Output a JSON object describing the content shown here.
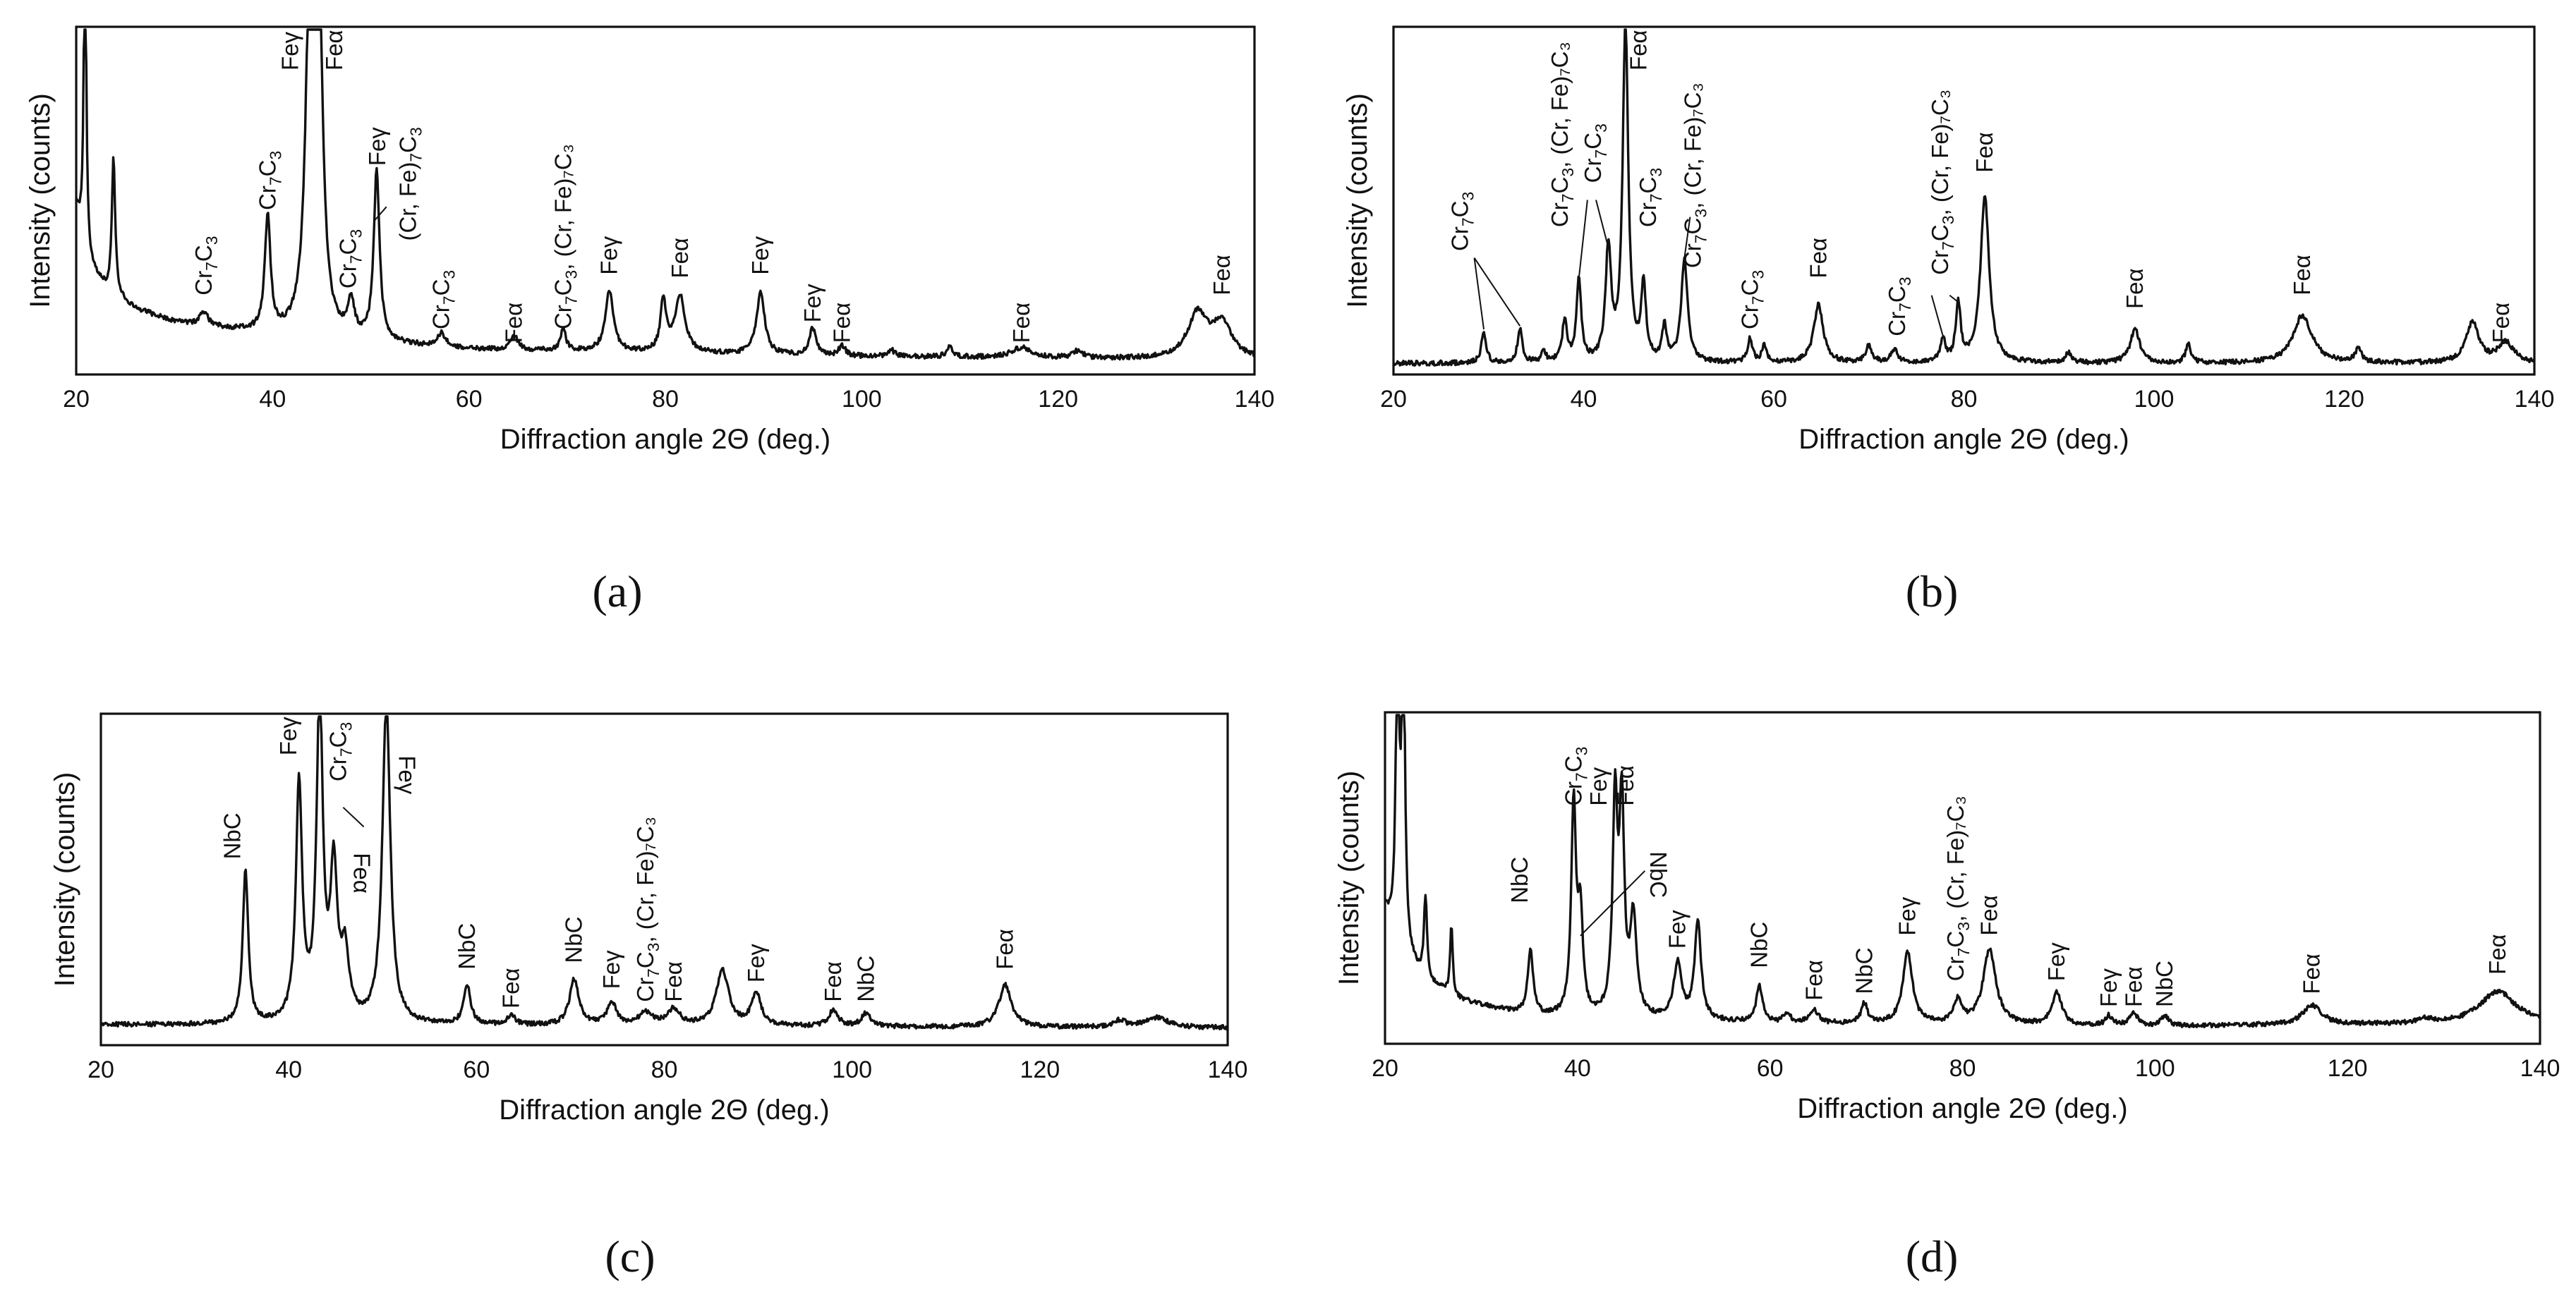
{
  "figure": {
    "panels": [
      {
        "id": "a",
        "caption": "(a)"
      },
      {
        "id": "b",
        "caption": "(b)"
      },
      {
        "id": "c",
        "caption": "(c)"
      },
      {
        "id": "d",
        "caption": "(d)"
      }
    ]
  },
  "chart_data": [
    {
      "type": "line",
      "panel": "a",
      "xlabel": "Diffraction angle 2Θ (deg.)",
      "ylabel": "Intensity (counts)",
      "xlim": [
        20,
        140
      ],
      "ylim": [
        0,
        100
      ],
      "xticks": [
        20,
        40,
        60,
        80,
        100,
        120,
        140
      ],
      "baseline": [
        [
          20,
          48
        ],
        [
          21,
          32
        ],
        [
          23,
          24
        ],
        [
          26,
          18
        ],
        [
          30,
          14
        ],
        [
          40,
          10
        ],
        [
          60,
          6
        ],
        [
          100,
          4
        ],
        [
          140,
          3
        ]
      ],
      "peaks": [
        [
          20.9,
          100,
          0.15
        ],
        [
          23.8,
          40,
          0.2
        ],
        [
          33,
          4,
          0.5
        ],
        [
          39.5,
          34,
          0.35
        ],
        [
          43.8,
          100,
          0.5
        ],
        [
          44.7,
          100,
          0.45
        ],
        [
          48,
          10,
          0.4
        ],
        [
          50.6,
          50,
          0.35
        ],
        [
          57.2,
          4,
          0.5
        ],
        [
          64.6,
          4,
          0.5
        ],
        [
          69.6,
          7,
          0.3
        ],
        [
          74.3,
          18,
          0.5
        ],
        [
          79.8,
          15,
          0.35
        ],
        [
          81.5,
          17,
          0.6
        ],
        [
          89.7,
          18,
          0.5
        ],
        [
          95,
          8,
          0.4
        ],
        [
          98,
          3,
          0.4
        ],
        [
          103,
          2,
          0.4
        ],
        [
          109,
          3,
          0.4
        ],
        [
          116.3,
          3,
          1.2
        ],
        [
          122,
          2,
          0.6
        ],
        [
          134.2,
          13,
          1.2
        ],
        [
          136.7,
          10,
          1.2
        ]
      ],
      "labels": [
        {
          "base": "Cr",
          "sub1": "7",
          "mid": "C",
          "sub2": "3",
          "tail": "",
          "x": 33,
          "y": 22,
          "rot": -90
        },
        {
          "base": "Cr",
          "sub1": "7",
          "mid": "C",
          "sub2": "3",
          "tail": "",
          "x": 39.5,
          "y": 47,
          "rot": -90
        },
        {
          "base": "Feγ",
          "x": 41.8,
          "y": 88,
          "rot": -90
        },
        {
          "base": "Feα",
          "x": 46.3,
          "y": 88,
          "rot": -90
        },
        {
          "base": "Cr",
          "sub1": "7",
          "mid": "C",
          "sub2": "3",
          "tail": "",
          "x": 47.7,
          "y": 24,
          "rot": -90
        },
        {
          "base": "Feγ",
          "x": 50.7,
          "y": 60,
          "rot": -90
        },
        {
          "base": "(Cr, Fe)",
          "sub1": "7",
          "mid": "C",
          "sub2": "3",
          "tail": "",
          "x": 53.8,
          "y": 38,
          "rot": -90
        },
        {
          "base": "Cr",
          "sub1": "7",
          "mid": "C",
          "sub2": "3",
          "tail": "",
          "x": 57.2,
          "y": 12,
          "rot": -90
        },
        {
          "base": "Feα",
          "x": 64.6,
          "y": 8,
          "rot": -90
        },
        {
          "base": "Cr",
          "sub1": "7",
          "mid": "C",
          "sub2": "3",
          "tail": ", (Cr, Fe)₇C₃",
          "x": 69.6,
          "y": 12,
          "rot": -90
        },
        {
          "base": "Feγ",
          "x": 74.3,
          "y": 28,
          "rot": -90
        },
        {
          "base": "Feα",
          "x": 81.5,
          "y": 27,
          "rot": -90
        },
        {
          "base": "Feγ",
          "x": 89.7,
          "y": 28,
          "rot": -90
        },
        {
          "base": "Feγ",
          "x": 95,
          "y": 14,
          "rot": -90
        },
        {
          "base": "Feα",
          "x": 98,
          "y": 8,
          "rot": -90
        },
        {
          "base": "Feα",
          "x": 116.3,
          "y": 8,
          "rot": -90
        },
        {
          "base": "Feα",
          "x": 136.7,
          "y": 22,
          "rot": -90
        }
      ],
      "leaders": [
        [
          [
            51.6,
            48
          ],
          [
            50.4,
            44
          ]
        ]
      ]
    },
    {
      "type": "line",
      "panel": "b",
      "xlabel": "Diffraction angle 2Θ (deg.)",
      "ylabel": "Intensity (counts)",
      "xlim": [
        20,
        140
      ],
      "ylim": [
        0,
        100
      ],
      "xticks": [
        20,
        40,
        60,
        80,
        100,
        120,
        140
      ],
      "baseline": [
        [
          20,
          2
        ],
        [
          140,
          2
        ]
      ],
      "peaks": [
        [
          29.5,
          9,
          0.3
        ],
        [
          33.3,
          10,
          0.3
        ],
        [
          35.8,
          3,
          0.3
        ],
        [
          38,
          12,
          0.3
        ],
        [
          39.5,
          24,
          0.3
        ],
        [
          42.6,
          33,
          0.35
        ],
        [
          44.4,
          100,
          0.35
        ],
        [
          46.3,
          22,
          0.3
        ],
        [
          48.5,
          10,
          0.3
        ],
        [
          50.6,
          30,
          0.4
        ],
        [
          57.5,
          7,
          0.3
        ],
        [
          59,
          5,
          0.3
        ],
        [
          64.7,
          17,
          0.6
        ],
        [
          70,
          5,
          0.4
        ],
        [
          72.7,
          4,
          0.4
        ],
        [
          77.8,
          7,
          0.3
        ],
        [
          79.4,
          17,
          0.3
        ],
        [
          82.2,
          49,
          0.55
        ],
        [
          91,
          3,
          0.4
        ],
        [
          98,
          10,
          0.6
        ],
        [
          103.6,
          6,
          0.3
        ],
        [
          115.6,
          14,
          1.2
        ],
        [
          121.5,
          4,
          0.4
        ],
        [
          133.5,
          12,
          0.8
        ],
        [
          137,
          6,
          1.0
        ]
      ],
      "labels": [
        {
          "base": "Cr",
          "sub1": "7",
          "mid": "C",
          "sub2": "3",
          "tail": "",
          "x": 27,
          "y": 35,
          "rot": -90
        },
        {
          "base": "Cr",
          "sub1": "7",
          "mid": "C",
          "sub2": "3",
          "tail": ", (Cr, Fe)₇C₃",
          "x": 37.5,
          "y": 42,
          "rot": -90
        },
        {
          "base": "Cr",
          "sub1": "7",
          "mid": "C",
          "sub2": "3",
          "tail": "",
          "x": 41,
          "y": 55,
          "rot": -90
        },
        {
          "base": "Feα",
          "x": 45.8,
          "y": 88,
          "rot": -90
        },
        {
          "base": "Cr",
          "sub1": "7",
          "mid": "C",
          "sub2": "3",
          "tail": "",
          "x": 46.8,
          "y": 42,
          "rot": -90
        },
        {
          "base": "Cr",
          "sub1": "7",
          "mid": "C",
          "sub2": "3",
          "tail": ", (Cr, Fe)₇C₃",
          "x": 51.5,
          "y": 30,
          "rot": -90
        },
        {
          "base": "Cr",
          "sub1": "7",
          "mid": "C",
          "sub2": "3",
          "tail": "",
          "x": 57.5,
          "y": 12,
          "rot": -90
        },
        {
          "base": "Feα",
          "x": 64.7,
          "y": 27,
          "rot": -90
        },
        {
          "base": "Cr",
          "sub1": "7",
          "mid": "C",
          "sub2": "3",
          "tail": "",
          "x": 73,
          "y": 10,
          "rot": -90
        },
        {
          "base": "Cr",
          "sub1": "7",
          "mid": "C",
          "sub2": "3",
          "tail": ", (Cr, Fe)₇C₃",
          "x": 77.5,
          "y": 28,
          "rot": -90
        },
        {
          "base": "Feα",
          "x": 82.2,
          "y": 58,
          "rot": -90
        },
        {
          "base": "Feα",
          "x": 98,
          "y": 18,
          "rot": -90
        },
        {
          "base": "Feα",
          "x": 115.6,
          "y": 22,
          "rot": -90
        },
        {
          "base": "Feα",
          "x": 136.5,
          "y": 8,
          "rot": -90
        }
      ],
      "leaders": [
        [
          [
            28.5,
            33
          ],
          [
            29.5,
            12
          ]
        ],
        [
          [
            28.5,
            33
          ],
          [
            33.3,
            13
          ]
        ],
        [
          [
            40.4,
            50
          ],
          [
            39.5,
            27
          ]
        ],
        [
          [
            41.3,
            50
          ],
          [
            42.6,
            36
          ]
        ],
        [
          [
            51.2,
            45
          ],
          [
            50.6,
            33
          ]
        ],
        [
          [
            76.6,
            22
          ],
          [
            77.8,
            10
          ]
        ],
        [
          [
            78.5,
            22
          ],
          [
            79.4,
            20
          ]
        ]
      ]
    },
    {
      "type": "line",
      "panel": "c",
      "xlabel": "Diffraction angle 2Θ (deg.)",
      "ylabel": "Intensity (counts)",
      "xlim": [
        20,
        140
      ],
      "ylim": [
        0,
        100
      ],
      "xticks": [
        20,
        40,
        60,
        80,
        100,
        120,
        140
      ],
      "baseline": [
        [
          20,
          5
        ],
        [
          140,
          4
        ]
      ],
      "peaks": [
        [
          35.4,
          47,
          0.35
        ],
        [
          41.1,
          73,
          0.4
        ],
        [
          43.3,
          100,
          0.4
        ],
        [
          44.8,
          45,
          0.45
        ],
        [
          46,
          20,
          0.5
        ],
        [
          50.4,
          100,
          0.5
        ],
        [
          59,
          12,
          0.45
        ],
        [
          63.7,
          3,
          0.5
        ],
        [
          70.4,
          14,
          0.6
        ],
        [
          74.4,
          7,
          0.6
        ],
        [
          78,
          4,
          0.8
        ],
        [
          81,
          5,
          0.8
        ],
        [
          86.2,
          17,
          0.8
        ],
        [
          89.8,
          10,
          0.6
        ],
        [
          98,
          5,
          0.6
        ],
        [
          101.5,
          4,
          0.6
        ],
        [
          116.3,
          13,
          0.8
        ],
        [
          128.5,
          2,
          0.8
        ],
        [
          132.5,
          3,
          1.5
        ]
      ],
      "labels": [
        {
          "base": "NbC",
          "x": 34,
          "y": 56,
          "rot": -90
        },
        {
          "base": "Feγ",
          "x": 40,
          "y": 88,
          "rot": -90
        },
        {
          "base": "Cr",
          "sub1": "7",
          "mid": "C",
          "sub2": "3",
          "tail": "",
          "x": 45.3,
          "y": 80,
          "rot": -90
        },
        {
          "base": "Feα",
          "x": 47.7,
          "y": 58,
          "rot": 90
        },
        {
          "base": "Feγ",
          "x": 52.5,
          "y": 88,
          "rot": 90
        },
        {
          "base": "NbC",
          "x": 59,
          "y": 22,
          "rot": -90
        },
        {
          "base": "Feα",
          "x": 63.7,
          "y": 10,
          "rot": -90
        },
        {
          "base": "NbC",
          "x": 70.4,
          "y": 24,
          "rot": -90
        },
        {
          "base": "Feγ",
          "x": 74.4,
          "y": 16,
          "rot": -90
        },
        {
          "base": "Cr",
          "sub1": "7",
          "mid": "C",
          "sub2": "3",
          "tail": ", (Cr, Fe)₇C₃",
          "x": 78,
          "y": 12,
          "rot": -90
        },
        {
          "base": "Feα",
          "x": 81,
          "y": 12,
          "rot": -90
        },
        {
          "base": "Feγ",
          "x": 89.8,
          "y": 18,
          "rot": -90
        },
        {
          "base": "Feα",
          "x": 98,
          "y": 12,
          "rot": -90
        },
        {
          "base": "NbC",
          "x": 101.5,
          "y": 12,
          "rot": -90
        },
        {
          "base": "Feα",
          "x": 116.3,
          "y": 22,
          "rot": -90
        }
      ],
      "leaders": [
        [
          [
            45.8,
            72
          ],
          [
            48,
            66
          ]
        ]
      ]
    },
    {
      "type": "line",
      "panel": "d",
      "xlabel": "Diffraction angle 2Θ (deg.)",
      "ylabel": "Intensity (counts)",
      "xlim": [
        20,
        140
      ],
      "ylim": [
        0,
        100
      ],
      "xticks": [
        20,
        40,
        60,
        80,
        100,
        120,
        140
      ],
      "baseline": [
        [
          20,
          40
        ],
        [
          21,
          30
        ],
        [
          24,
          18
        ],
        [
          28,
          12
        ],
        [
          35,
          7
        ],
        [
          60,
          5
        ],
        [
          100,
          4
        ],
        [
          140,
          5
        ]
      ],
      "peaks": [
        [
          21.3,
          100,
          0.2
        ],
        [
          21.9,
          100,
          0.2
        ],
        [
          24.2,
          26,
          0.2
        ],
        [
          26.9,
          22,
          0.15
        ],
        [
          35.1,
          20,
          0.35
        ],
        [
          39.6,
          65,
          0.3
        ],
        [
          40.3,
          30,
          0.3
        ],
        [
          43.9,
          65,
          0.3
        ],
        [
          44.6,
          63,
          0.3
        ],
        [
          45.8,
          30,
          0.4
        ],
        [
          50.4,
          17,
          0.5
        ],
        [
          52.5,
          30,
          0.4
        ],
        [
          58.9,
          11,
          0.4
        ],
        [
          61.8,
          3,
          0.4
        ],
        [
          64.6,
          4,
          0.5
        ],
        [
          69.8,
          6,
          0.4
        ],
        [
          74.3,
          22,
          0.6
        ],
        [
          79.5,
          7,
          0.5
        ],
        [
          82.8,
          23,
          0.8
        ],
        [
          89.8,
          10,
          0.6
        ],
        [
          95.2,
          3,
          0.4
        ],
        [
          97.8,
          4,
          0.5
        ],
        [
          101,
          3,
          0.5
        ],
        [
          116.3,
          6,
          1.2
        ],
        [
          128,
          1.5,
          0.8
        ],
        [
          135.6,
          10,
          2.2
        ]
      ],
      "labels": [
        {
          "base": "NbC",
          "x": 34,
          "y": 42,
          "rot": -90
        },
        {
          "base": "Cr",
          "sub1": "7",
          "mid": "C",
          "sub2": "3",
          "tail": "",
          "x": 39.6,
          "y": 72,
          "rot": -90
        },
        {
          "base": "Feγ",
          "x": 42.2,
          "y": 72,
          "rot": -90
        },
        {
          "base": "Feα",
          "x": 45,
          "y": 72,
          "rot": -90
        },
        {
          "base": "NbC",
          "x": 48.3,
          "y": 58,
          "rot": 90
        },
        {
          "base": "Feγ",
          "x": 50.4,
          "y": 28,
          "rot": -90
        },
        {
          "base": "NbC",
          "x": 58.9,
          "y": 22,
          "rot": -90
        },
        {
          "base": "Feα",
          "x": 64.6,
          "y": 12,
          "rot": -90
        },
        {
          "base": "NbC",
          "x": 69.8,
          "y": 14,
          "rot": -90
        },
        {
          "base": "Feγ",
          "x": 74.3,
          "y": 32,
          "rot": -90
        },
        {
          "base": "Cr",
          "sub1": "7",
          "mid": "C",
          "sub2": "3",
          "tail": ", (Cr, Fe)₇C₃",
          "x": 79.3,
          "y": 18,
          "rot": -90
        },
        {
          "base": "Feα",
          "x": 82.8,
          "y": 32,
          "rot": -90
        },
        {
          "base": "Feγ",
          "x": 89.8,
          "y": 18,
          "rot": -90
        },
        {
          "base": "Feγ",
          "x": 95.2,
          "y": 10,
          "rot": -90
        },
        {
          "base": "Feα",
          "x": 97.8,
          "y": 10,
          "rot": -90
        },
        {
          "base": "NbC",
          "x": 101,
          "y": 10,
          "rot": -90
        },
        {
          "base": "Feα",
          "x": 116.3,
          "y": 14,
          "rot": -90
        },
        {
          "base": "Feα",
          "x": 135.6,
          "y": 20,
          "rot": -90
        }
      ],
      "leaders": [
        [
          [
            47,
            52
          ],
          [
            40.3,
            32
          ]
        ]
      ]
    }
  ]
}
